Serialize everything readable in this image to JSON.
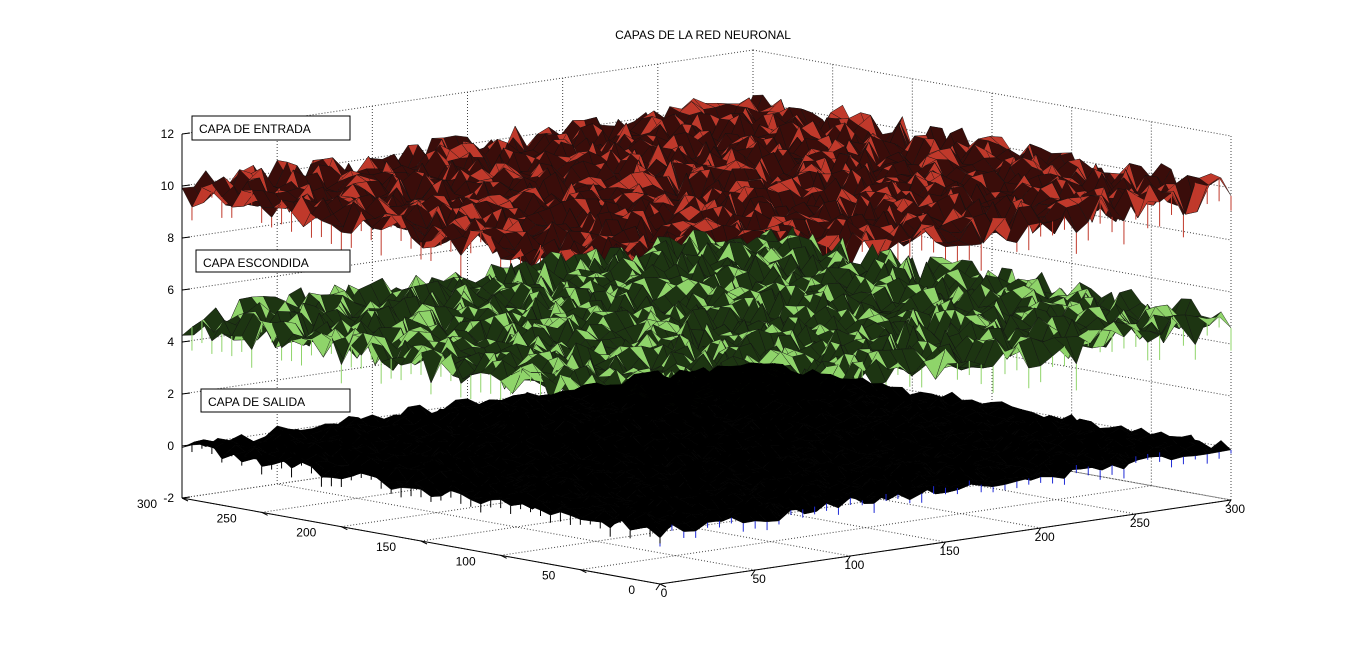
{
  "chart_data": {
    "type": "surface",
    "title": "CAPAS DE LA RED NEURONAL",
    "x_ticks": [
      0,
      50,
      100,
      150,
      200,
      250,
      300
    ],
    "y_ticks": [
      0,
      50,
      100,
      150,
      200,
      250,
      300
    ],
    "z_ticks": [
      -2,
      0,
      2,
      4,
      6,
      8,
      10,
      12
    ],
    "xlim": [
      0,
      300
    ],
    "ylim": [
      0,
      300
    ],
    "zlim": [
      -2,
      12
    ],
    "grid": true,
    "series": [
      {
        "label": "CAPA DE ENTRADA",
        "base_z": 9.8,
        "noise": 0.7,
        "color": "#c0392b",
        "shadow": "#3a0d0a"
      },
      {
        "label": "CAPA ESCONDIDA",
        "base_z": 4.8,
        "noise": 0.7,
        "color": "#8fd46a",
        "shadow": "#1d3512"
      },
      {
        "label": "CAPA DE SALIDA",
        "base_z": 0.0,
        "noise": 0.25,
        "color": "#1f2bd6",
        "shadow": "#000000"
      }
    ]
  }
}
